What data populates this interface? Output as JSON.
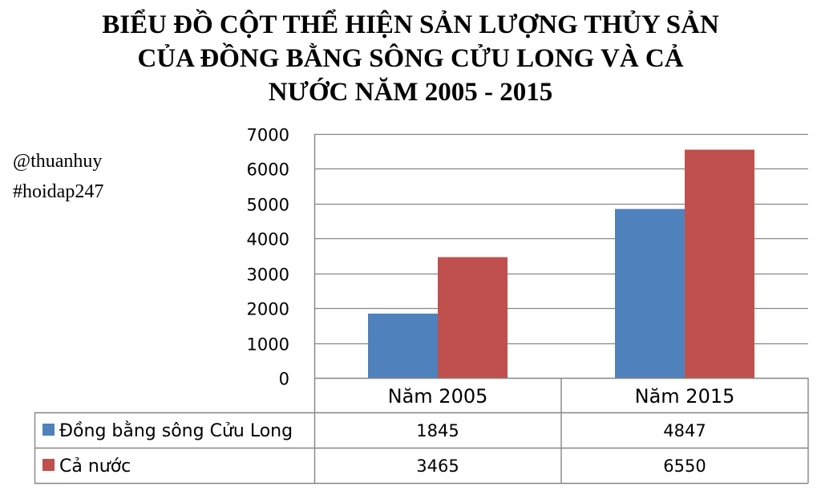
{
  "title_lines": [
    "BIỂU ĐỒ CỘT THỂ HIỆN SẢN LƯỢNG THỦY SẢN",
    "CỦA ĐỒNG BẰNG SÔNG CỬU LONG VÀ CẢ",
    "NƯỚC NĂM 2005 - 2015"
  ],
  "watermark": {
    "line1": "@thuanhuy",
    "line2": "#hoidap247"
  },
  "chart_data": {
    "type": "bar",
    "title": "BIỂU ĐỒ CỘT THỂ HIỆN SẢN LƯỢNG THỦY SẢN CỦA ĐỒNG BẰNG SÔNG CỬU LONG VÀ CẢ NƯỚC NĂM 2005 - 2015",
    "categories": [
      "Năm 2005",
      "Năm 2015"
    ],
    "series": [
      {
        "name": "Đồng bằng sông Cửu Long",
        "values": [
          1845,
          4847
        ],
        "color": "#4F81BD"
      },
      {
        "name": "Cả nước",
        "values": [
          3465,
          6550
        ],
        "color": "#C0504D"
      }
    ],
    "ylim": [
      0,
      7000
    ],
    "yticks": [
      0,
      1000,
      2000,
      3000,
      4000,
      5000,
      6000,
      7000
    ],
    "grid": true,
    "legend": "data-table",
    "xlabel": "",
    "ylabel": ""
  }
}
